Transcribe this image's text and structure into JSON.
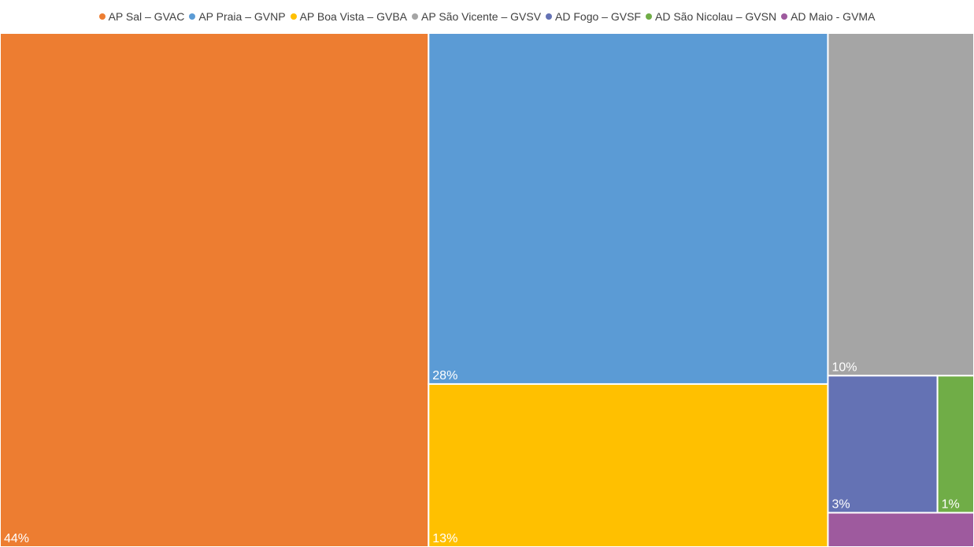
{
  "chart_data": {
    "type": "treemap",
    "title": "",
    "legend_position": "top",
    "series": [
      {
        "name": "AP Sal – GVAC",
        "value": 44,
        "label": "44%",
        "color": "#ED7D31"
      },
      {
        "name": "AP Praia – GVNP",
        "value": 28,
        "label": "28%",
        "color": "#5B9BD5"
      },
      {
        "name": "AP Boa Vista – GVBA",
        "value": 13,
        "label": "13%",
        "color": "#FFC000"
      },
      {
        "name": "AP São Vicente – GVSV",
        "value": 10,
        "label": "10%",
        "color": "#A5A5A5"
      },
      {
        "name": "AD Fogo – GVSF",
        "value": 3,
        "label": "3%",
        "color": "#6472B4"
      },
      {
        "name": "AD São Nicolau – GVSN",
        "value": 1,
        "label": "1%",
        "color": "#70AD47"
      },
      {
        "name": "AD Maio - GVMA",
        "value": 1,
        "label": "",
        "color": "#9E5A9E"
      }
    ]
  }
}
